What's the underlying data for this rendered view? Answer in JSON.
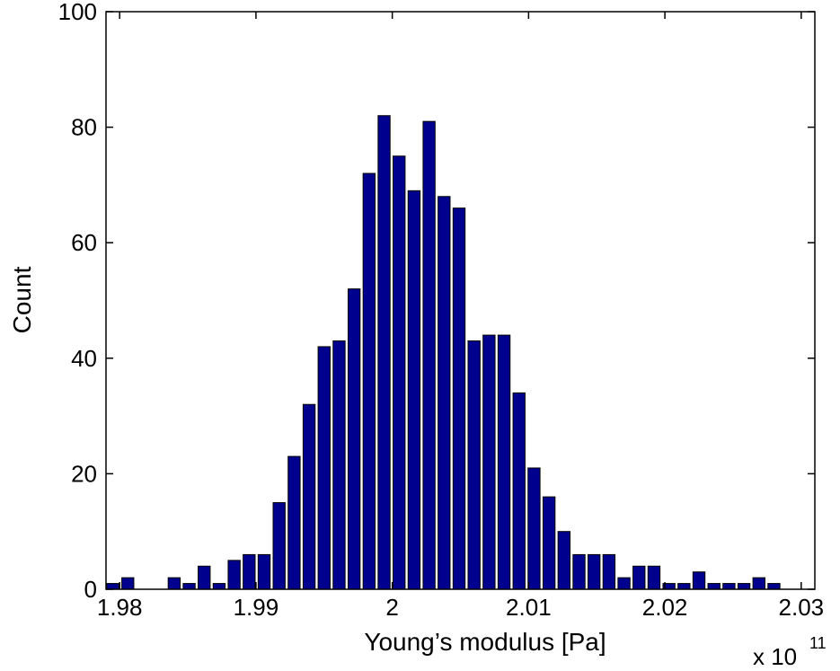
{
  "chart_data": {
    "type": "bar",
    "xlabel": "Young’s modulus [Pa]",
    "ylabel": "Count",
    "xlim": [
      1.979,
      2.031
    ],
    "ylim": [
      0,
      100
    ],
    "x_multiplier": {
      "base": "x 10",
      "exponent": "11"
    },
    "x_ticks": [
      1.98,
      1.99,
      2.0,
      2.01,
      2.02,
      2.03
    ],
    "x_tick_labels": [
      "1.98",
      "1.99",
      "2",
      "2.01",
      "2.02",
      "2.03"
    ],
    "y_ticks": [
      0,
      20,
      40,
      60,
      80,
      100
    ],
    "y_tick_labels": [
      "0",
      "20",
      "40",
      "60",
      "80",
      "100"
    ],
    "bar_color": "#00008f",
    "grid": false,
    "x": [
      1.9795,
      1.9806,
      1.9818,
      1.9829,
      1.984,
      1.9851,
      1.9862,
      1.9873,
      1.9884,
      1.9895,
      1.9906,
      1.9917,
      1.9928,
      1.9939,
      1.995,
      1.9961,
      1.9972,
      1.9983,
      1.9994,
      2.0005,
      2.0016,
      2.0027,
      2.0038,
      2.0049,
      2.006,
      2.0071,
      2.0082,
      2.0093,
      2.0104,
      2.0115,
      2.0126,
      2.0137,
      2.0148,
      2.0159,
      2.017,
      2.0181,
      2.0192,
      2.0203,
      2.0214,
      2.0225,
      2.0236,
      2.0247,
      2.0258,
      2.0269,
      2.028
    ],
    "values": [
      1,
      2,
      0,
      0,
      2,
      1,
      4,
      1,
      5,
      6,
      6,
      15,
      23,
      32,
      42,
      43,
      52,
      72,
      82,
      75,
      69,
      81,
      68,
      66,
      43,
      44,
      44,
      34,
      21,
      16,
      10,
      6,
      6,
      6,
      2,
      4,
      4,
      1,
      1,
      3,
      1,
      1,
      1,
      2,
      1
    ]
  }
}
